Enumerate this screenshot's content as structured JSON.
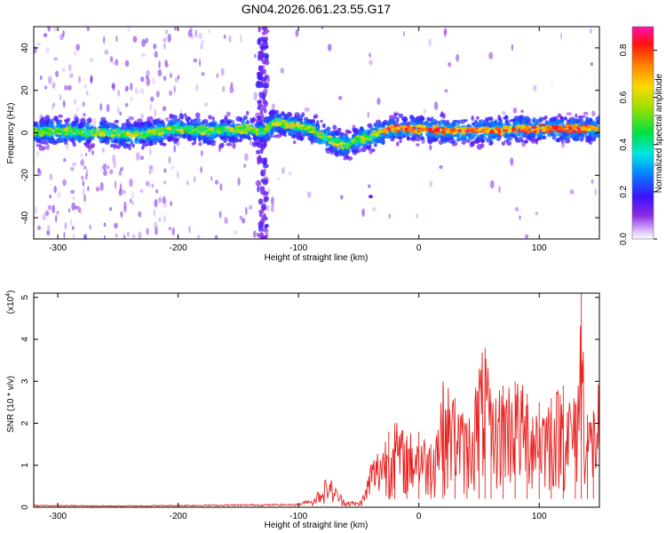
{
  "title": "GN04.2026.061.23.55.G17",
  "chart_data": [
    {
      "type": "heatmap",
      "xlabel": "Height of straight line (km)",
      "ylabel": "Frequency (Hz)",
      "xlim": [
        -320,
        150
      ],
      "ylim": [
        -50,
        50
      ],
      "xticks": [
        -300,
        -200,
        -100,
        0,
        100
      ],
      "yticks": [
        -40,
        -20,
        0,
        20,
        40
      ],
      "colorbar": {
        "label": "Normalized spectral amplitude",
        "range": [
          0,
          0.9
        ],
        "ticks": [
          0.0,
          0.2,
          0.4,
          0.6,
          0.8
        ],
        "colormap": "rainbow (white-violet-blue-cyan-green-yellow-red-magenta)"
      },
      "ridge": {
        "x": [
          -320,
          -300,
          -280,
          -260,
          -240,
          -220,
          -200,
          -180,
          -160,
          -140,
          -130,
          -120,
          -110,
          -100,
          -90,
          -80,
          -70,
          -60,
          -50,
          -40,
          -30,
          -20,
          -10,
          0,
          20,
          40,
          60,
          80,
          100,
          120,
          140,
          150
        ],
        "frequency": [
          0,
          1,
          0,
          0,
          -1,
          0,
          2,
          1,
          1,
          2,
          0,
          5,
          4,
          3,
          2,
          -2,
          -4,
          -6,
          -3,
          -2,
          1,
          2,
          2,
          2,
          1,
          1,
          1,
          2,
          2,
          2,
          2,
          2
        ]
      },
      "notable": "broadband vertical streak near x = -130 km"
    },
    {
      "type": "line",
      "xlabel": "Height of straight line (km)",
      "ylabel": "SNR (10 * v/v)",
      "scale_label": "(x10",
      "scale_exponent": "4",
      "xlim": [
        -320,
        150
      ],
      "ylim": [
        0,
        5.1
      ],
      "xticks": [
        -300,
        -200,
        -100,
        0,
        100
      ],
      "yticks": [
        0,
        1,
        2,
        3,
        4,
        5
      ],
      "color": "#e8201e",
      "series": [
        {
          "name": "",
          "x": [
            -320,
            -250,
            -150,
            -100,
            -90,
            -85,
            -80,
            -75,
            -70,
            -65,
            -60,
            -50,
            -45,
            -40,
            -35,
            -30,
            -25,
            -20,
            -10,
            0,
            10,
            20,
            30,
            40,
            50,
            55,
            60,
            70,
            80,
            90,
            100,
            110,
            120,
            130,
            135,
            140,
            145,
            150
          ],
          "y": [
            0.04,
            0.03,
            0.05,
            0.06,
            0.15,
            0.35,
            0.55,
            0.75,
            0.5,
            0.3,
            0.15,
            0.12,
            0.35,
            1.1,
            1.3,
            1.6,
            1.8,
            2.0,
            1.7,
            1.8,
            1.5,
            2.9,
            2.6,
            2.0,
            3.3,
            3.8,
            2.5,
            2.9,
            3.0,
            2.7,
            2.5,
            2.6,
            2.9,
            2.5,
            5.1,
            2.2,
            2.3,
            3.1
          ]
        }
      ]
    }
  ]
}
